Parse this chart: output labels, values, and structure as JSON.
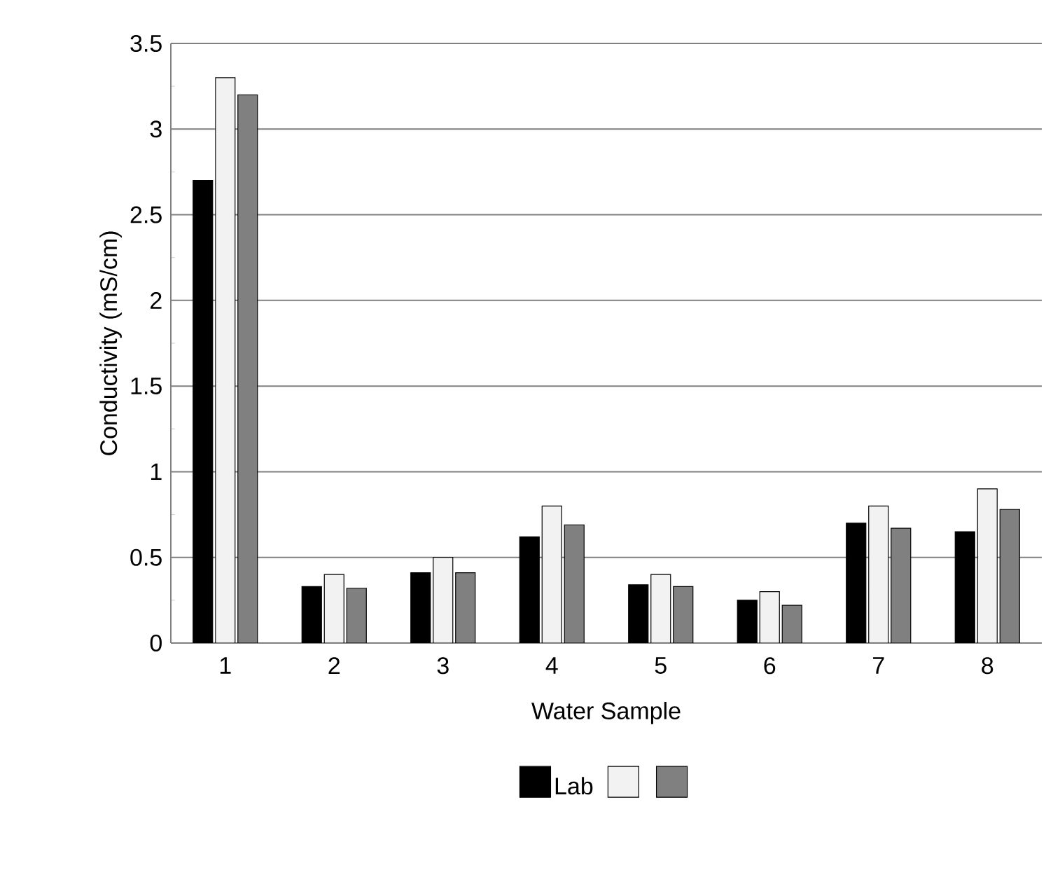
{
  "chart_data": {
    "type": "bar",
    "xlabel": "Water Sample",
    "ylabel": "Conductivity (mS/cm)",
    "categories": [
      "1",
      "2",
      "3",
      "4",
      "5",
      "6",
      "7",
      "8"
    ],
    "series": [
      {
        "name": "Lab",
        "color": "#000000",
        "values": [
          2.7,
          0.33,
          0.41,
          0.62,
          0.34,
          0.25,
          0.7,
          0.65
        ]
      },
      {
        "color": "#f2f2f2",
        "values": [
          3.3,
          0.4,
          0.5,
          0.8,
          0.4,
          0.3,
          0.8,
          0.9
        ]
      },
      {
        "color": "#808080",
        "values": [
          3.2,
          0.32,
          0.41,
          0.69,
          0.33,
          0.22,
          0.67,
          0.78
        ]
      }
    ],
    "ylim": [
      0,
      3.5
    ],
    "yticks": [
      0,
      0.5,
      1,
      1.5,
      2,
      2.5,
      3,
      3.5
    ],
    "grid": "y",
    "legend": "bottom"
  }
}
